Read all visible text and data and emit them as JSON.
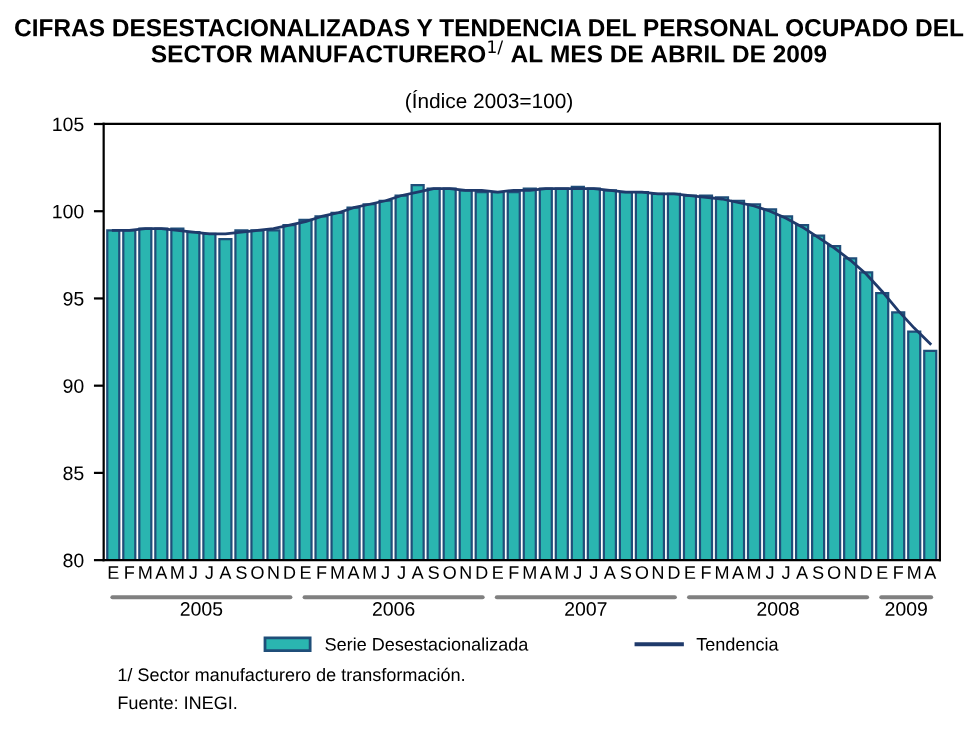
{
  "chart_data": {
    "type": "bar",
    "title": "CIFRAS DESESTACIONALIZADAS Y TENDENCIA DEL PERSONAL OCUPADO DEL SECTOR MANUFACTURERO$^{1/}$ AL MES DE ABRIL DE 2009",
    "subtitle": "(Índice 2003=100)",
    "categories": [
      "E",
      "F",
      "M",
      "A",
      "M",
      "J",
      "J",
      "A",
      "S",
      "O",
      "N",
      "D",
      "E",
      "F",
      "M",
      "A",
      "M",
      "J",
      "J",
      "A",
      "S",
      "O",
      "N",
      "D",
      "E",
      "F",
      "M",
      "A",
      "M",
      "J",
      "J",
      "A",
      "S",
      "O",
      "N",
      "D",
      "E",
      "F",
      "M",
      "A",
      "M",
      "J",
      "J",
      "A",
      "S",
      "O",
      "N",
      "D",
      "E",
      "F",
      "M",
      "A"
    ],
    "series": [
      {
        "name": "Serie Desestacionalizada",
        "color": "#2ab5b0",
        "values": [
          98.9,
          98.9,
          99.0,
          99.0,
          99.0,
          98.8,
          98.7,
          98.4,
          98.9,
          98.9,
          98.9,
          99.2,
          99.5,
          99.7,
          99.9,
          100.2,
          100.4,
          100.6,
          100.9,
          101.5,
          101.3,
          101.3,
          101.2,
          101.1,
          101.1,
          101.1,
          101.3,
          101.3,
          101.3,
          101.4,
          101.3,
          101.2,
          101.1,
          101.1,
          101.0,
          101.0,
          100.9,
          100.9,
          100.8,
          100.6,
          100.4,
          100.1,
          99.7,
          99.2,
          98.6,
          98.0,
          97.3,
          96.5,
          95.3,
          94.2,
          93.1,
          92.0
        ]
      },
      {
        "name": "Tendencia",
        "type": "line",
        "color": "#1f3a6b",
        "values": [
          98.9,
          98.9,
          99.0,
          99.0,
          98.9,
          98.8,
          98.7,
          98.7,
          98.8,
          98.9,
          99.0,
          99.2,
          99.4,
          99.7,
          99.9,
          100.2,
          100.4,
          100.6,
          100.9,
          101.1,
          101.3,
          101.3,
          101.2,
          101.2,
          101.1,
          101.2,
          101.2,
          101.3,
          101.3,
          101.3,
          101.3,
          101.2,
          101.1,
          101.1,
          101.0,
          101.0,
          100.9,
          100.8,
          100.7,
          100.5,
          100.3,
          100.0,
          99.6,
          99.1,
          98.5,
          97.9,
          97.2,
          96.4,
          95.4,
          94.3,
          93.3,
          92.4
        ]
      }
    ],
    "ylim": [
      80,
      105
    ],
    "yticks": [
      80,
      85,
      90,
      95,
      100,
      105
    ],
    "grid": false,
    "legend": "bottom",
    "annotations": [
      "2005",
      "2006",
      "2007",
      "2008",
      "2009",
      "1/ Sector manufacturero de transformación.",
      "Fuente: INEGI."
    ]
  }
}
